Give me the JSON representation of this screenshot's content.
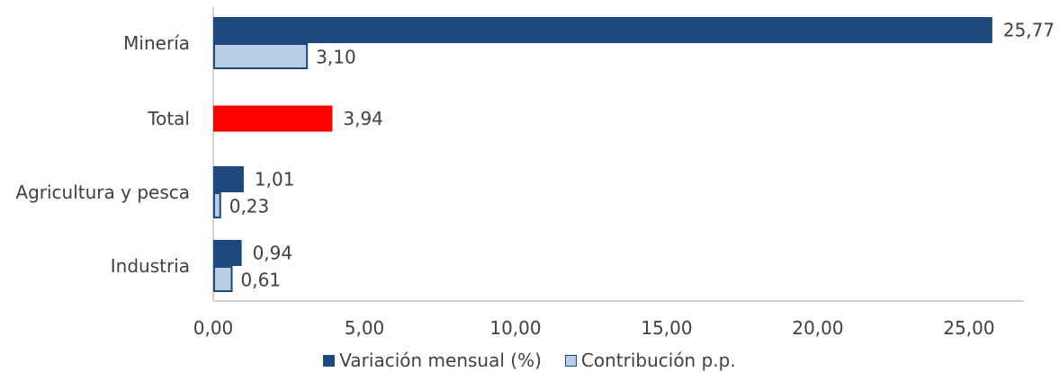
{
  "chart_data": {
    "type": "bar",
    "orientation": "horizontal",
    "categories": [
      "Minería",
      "Total",
      "Agricultura y pesca",
      "Industria"
    ],
    "series": [
      {
        "name": "Variación mensual (%)",
        "color": "#1f497d",
        "values": [
          25.77,
          3.94,
          1.01,
          0.94
        ],
        "labels": [
          "25,77",
          "3,94",
          "1,01",
          "0,94"
        ],
        "highlight": {
          "category": "Total",
          "color": "#ff0000"
        }
      },
      {
        "name": "Contribución p.p.",
        "color": "#b8cce4",
        "border": "#1f497d",
        "values": [
          3.1,
          null,
          0.23,
          0.61
        ],
        "labels": [
          "3,10",
          null,
          "0,23",
          "0,61"
        ]
      }
    ],
    "xlim": [
      0,
      27.5
    ],
    "xticks": [
      0,
      5,
      10,
      15,
      20,
      25
    ],
    "xtick_labels": [
      "0,00",
      "5,00",
      "10,00",
      "15,00",
      "20,00",
      "25,00"
    ],
    "legend_position": "bottom",
    "grid": false
  }
}
